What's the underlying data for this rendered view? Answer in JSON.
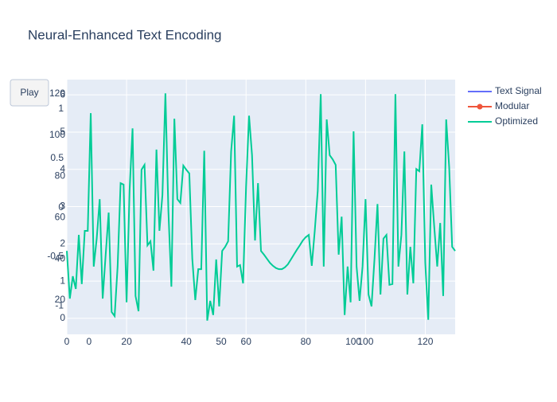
{
  "chart_data": {
    "type": "line",
    "title": "Neural-Enhanced Text Encoding",
    "play_button": "Play",
    "x": [
      0,
      1,
      2,
      3,
      4,
      5,
      6,
      7,
      8,
      9,
      10,
      11,
      12,
      13,
      14,
      15,
      16,
      17,
      18,
      19,
      20,
      21,
      22,
      23,
      24,
      25,
      26,
      27,
      28,
      29,
      30,
      31,
      32,
      33,
      34,
      35,
      36,
      37,
      38,
      39,
      40,
      41,
      42,
      43,
      44,
      45,
      46,
      47,
      48,
      49,
      50,
      51,
      52,
      53,
      54,
      55,
      56,
      57,
      58,
      59,
      60,
      61,
      62,
      63,
      64,
      65,
      66,
      67,
      68,
      69,
      70,
      71,
      72,
      73,
      74,
      75,
      76,
      77,
      78,
      79,
      80,
      81,
      82,
      83,
      84,
      85,
      86,
      87,
      88,
      89,
      90,
      91,
      92,
      93,
      94,
      95,
      96,
      97,
      98,
      99,
      100,
      101,
      102,
      103,
      104,
      105,
      106,
      107,
      108,
      109,
      110,
      111,
      112,
      113,
      114,
      115,
      116,
      117,
      118,
      119,
      120,
      121,
      122,
      123,
      124,
      125,
      126,
      127,
      128,
      129,
      130
    ],
    "series": [
      {
        "name": "Text Signal",
        "color": "#636efa",
        "mode": "lines"
      },
      {
        "name": "Modular",
        "color": "#ef553b",
        "mode": "lines+markers"
      },
      {
        "name": "Optimized",
        "color": "#00cc96",
        "mode": "lines",
        "values": [
          1.81,
          0.53,
          1.13,
          0.79,
          2.24,
          0.92,
          2.35,
          2.35,
          5.51,
          1.39,
          2.14,
          3.2,
          0.53,
          1.71,
          2.84,
          0.17,
          0.06,
          1.39,
          3.63,
          3.59,
          0.43,
          3.42,
          5.1,
          0.6,
          0.19,
          3.99,
          4.12,
          1.96,
          2.07,
          1.28,
          4.53,
          2.35,
          3.31,
          6.04,
          2.88,
          0.85,
          5.36,
          3.2,
          3.1,
          4.1,
          3.99,
          3.89,
          1.6,
          0.49,
          1.32,
          1.32,
          4.5,
          -0.06,
          0.47,
          0.09,
          1.58,
          0.32,
          1.81,
          1.92,
          2.07,
          4.48,
          5.44,
          1.39,
          1.43,
          0.94,
          3.52,
          5.44,
          4.38,
          2.09,
          3.63,
          1.81,
          1.71,
          1.6,
          1.49,
          1.41,
          1.35,
          1.32,
          1.32,
          1.37,
          1.45,
          1.58,
          1.71,
          1.84,
          1.96,
          2.09,
          2.18,
          2.24,
          1.41,
          2.35,
          3.42,
          6.02,
          1.39,
          5.34,
          4.38,
          4.27,
          4.12,
          1.71,
          2.73,
          0.09,
          1.39,
          0.43,
          5.02,
          1.39,
          0.47,
          1.39,
          3.2,
          0.64,
          0.32,
          1.6,
          3.07,
          0.64,
          2.14,
          2.24,
          0.9,
          0.92,
          6.02,
          1.39,
          2.24,
          4.48,
          0.64,
          1.92,
          0.94,
          4.01,
          3.95,
          5.21,
          1.49,
          -0.04,
          3.59,
          2.46,
          1.39,
          2.56,
          0.6,
          5.34,
          4.06,
          1.92,
          1.81
        ]
      }
    ],
    "xlim": [
      0,
      130
    ],
    "xticks": [
      0,
      20,
      40,
      60,
      80,
      100,
      120
    ],
    "ylim": [
      -0.43,
      6.41
    ],
    "yticks": [
      0,
      1,
      2,
      3,
      4,
      5,
      6
    ],
    "y2lim": [
      3.4,
      126.9
    ],
    "y2ticks": [
      20,
      40,
      60,
      80,
      100,
      120
    ],
    "y3lim": [
      -1.29,
      1.3
    ],
    "y3ticks": [
      -1,
      -0.5,
      0,
      0.5,
      1
    ],
    "x2lim": [
      -8.4,
      138.5
    ],
    "x2ticks": [
      0,
      50,
      100
    ],
    "grid": true
  }
}
